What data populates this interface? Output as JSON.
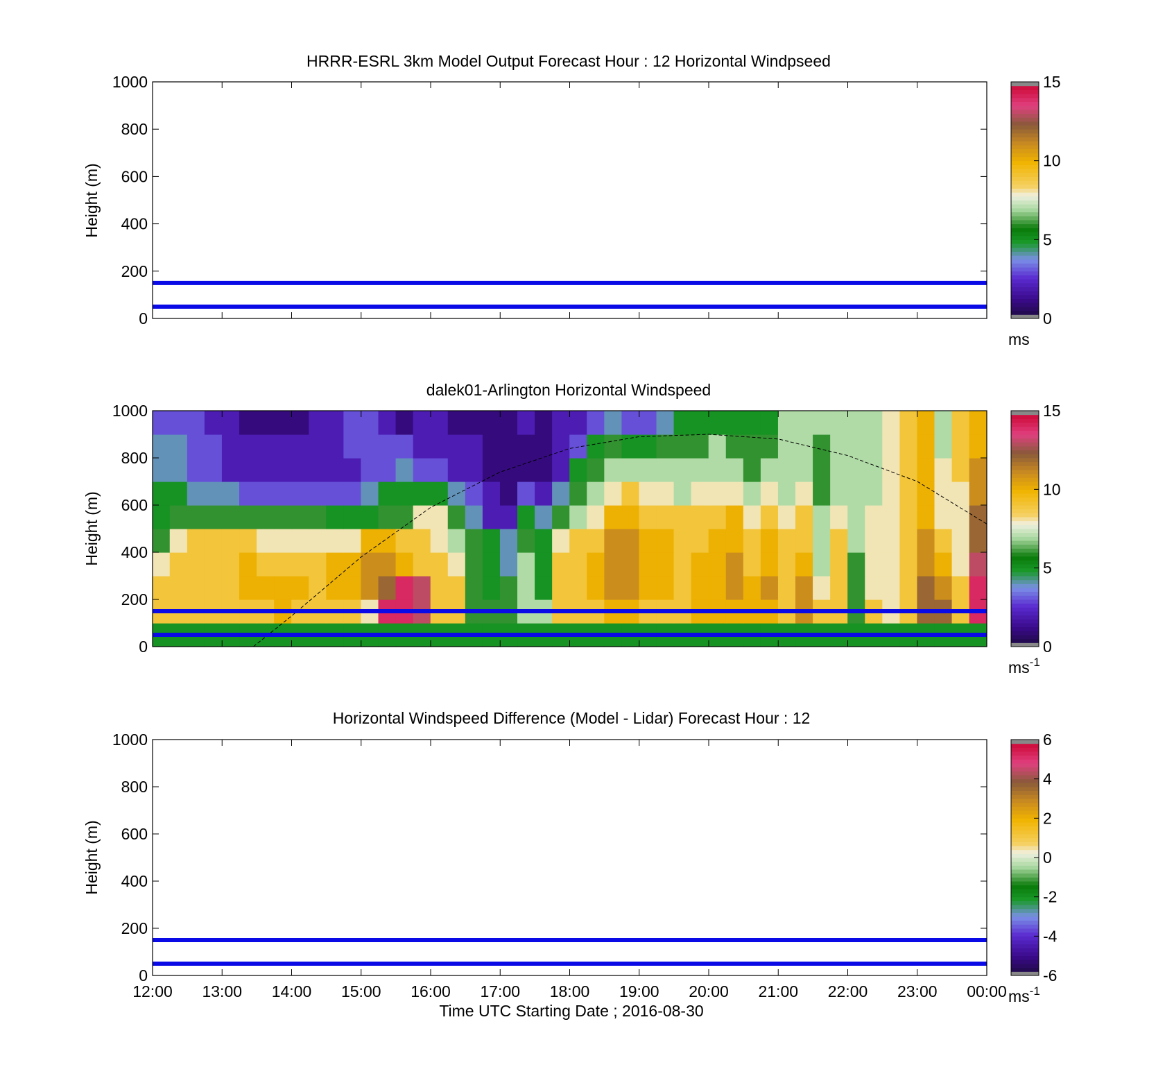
{
  "chart_data": [
    {
      "type": "heatmap",
      "title": "HRRR-ESRL 3km Model Output   Forecast Hour : 12 Horizontal Windpseed",
      "xlabel": "",
      "ylabel": "Height (m)",
      "xlim": [
        "12:00",
        "00:00"
      ],
      "ylim": [
        0,
        1000
      ],
      "yticks": [
        "0",
        "200",
        "400",
        "600",
        "800",
        "1000"
      ],
      "reference_lines_m": [
        50,
        150
      ],
      "reference_line_color": "#0a0ae6",
      "colorbar": {
        "range": [
          0,
          15
        ],
        "ticks": [
          "0",
          "5",
          "10",
          "15"
        ],
        "unit": "ms"
      },
      "values": []
    },
    {
      "type": "heatmap",
      "title": "dalek01-Arlington  Horizontal Windspeed",
      "xlabel": "",
      "ylabel": "Height (m)",
      "xlim": [
        "12:00",
        "00:00"
      ],
      "ylim": [
        0,
        1000
      ],
      "yticks": [
        "0",
        "200",
        "400",
        "600",
        "800",
        "1000"
      ],
      "reference_lines_m": [
        50,
        150
      ],
      "reference_line_color": "#0a0ae6",
      "colorbar": {
        "range": [
          0,
          15
        ],
        "ticks": [
          "0",
          "5",
          "10",
          "15"
        ],
        "unit": "ms",
        "unit_superscript": "-1"
      },
      "boundary_layer_curve": [
        {
          "x": "13:27",
          "y": 0
        },
        {
          "x": "14:00",
          "y": 130
        },
        {
          "x": "15:00",
          "y": 380
        },
        {
          "x": "16:00",
          "y": 590
        },
        {
          "x": "17:00",
          "y": 740
        },
        {
          "x": "18:00",
          "y": 840
        },
        {
          "x": "19:00",
          "y": 890
        },
        {
          "x": "20:00",
          "y": 900
        },
        {
          "x": "21:00",
          "y": 880
        },
        {
          "x": "22:00",
          "y": 810
        },
        {
          "x": "23:00",
          "y": 700
        },
        {
          "x": "00:00",
          "y": 520
        }
      ],
      "columns_time": [
        "12:00",
        "12:15",
        "12:30",
        "12:45",
        "13:00",
        "13:15",
        "13:30",
        "13:45",
        "14:00",
        "14:15",
        "14:30",
        "14:45",
        "15:00",
        "15:15",
        "15:30",
        "15:45",
        "16:00",
        "16:15",
        "16:30",
        "16:45",
        "17:00",
        "17:15",
        "17:30",
        "17:45",
        "18:00",
        "18:15",
        "18:30",
        "18:45",
        "19:00",
        "19:15",
        "19:30",
        "19:45",
        "20:00",
        "20:15",
        "20:30",
        "20:45",
        "21:00",
        "21:15",
        "21:30",
        "21:45",
        "22:00",
        "22:15",
        "22:30",
        "22:45",
        "23:00",
        "23:15",
        "23:30",
        "23:45"
      ],
      "rows_height_m": [
        0,
        100,
        200,
        300,
        400,
        500,
        600,
        700,
        800,
        900
      ],
      "values_ms": [
        [
          5,
          5,
          5,
          5,
          5,
          5,
          5,
          5,
          5,
          5,
          5,
          5,
          5,
          5,
          5,
          5,
          5,
          5,
          5,
          5,
          5,
          5,
          5,
          5,
          5,
          5,
          5,
          5,
          5,
          5,
          5,
          5,
          5,
          5,
          5,
          5,
          5,
          5,
          5,
          5,
          5,
          5,
          5,
          5,
          5,
          5,
          5,
          5
        ],
        [
          9,
          9,
          9,
          9,
          9,
          9,
          9,
          10,
          9,
          9,
          9,
          9,
          8,
          14,
          14,
          13,
          9,
          9,
          6,
          6,
          6,
          7,
          7,
          9,
          9,
          9,
          10,
          10,
          9,
          9,
          9,
          10,
          10,
          10,
          10,
          10,
          9,
          11,
          9,
          9,
          6,
          9,
          8,
          9,
          12,
          12,
          9,
          14
        ],
        [
          9,
          9,
          9,
          9,
          9,
          10,
          10,
          10,
          10,
          9,
          10,
          10,
          11,
          12,
          14,
          13,
          9,
          9,
          6,
          5,
          6,
          7,
          5,
          9,
          9,
          10,
          11,
          11,
          10,
          10,
          9,
          10,
          10,
          11,
          10,
          11,
          9,
          11,
          8,
          9,
          6,
          8,
          8,
          9,
          12,
          11,
          9,
          14
        ],
        [
          8,
          9,
          9,
          9,
          9,
          10,
          9,
          9,
          9,
          9,
          10,
          10,
          11,
          11,
          10,
          9,
          9,
          8,
          6,
          5,
          4,
          7,
          5,
          9,
          9,
          10,
          11,
          11,
          10,
          10,
          9,
          10,
          10,
          11,
          9,
          10,
          9,
          10,
          7,
          9,
          6,
          8,
          8,
          9,
          11,
          10,
          8,
          13
        ],
        [
          6,
          8,
          9,
          9,
          9,
          9,
          8,
          8,
          8,
          8,
          8,
          8,
          10,
          10,
          9,
          9,
          8,
          7,
          6,
          5,
          4,
          6,
          5,
          8,
          9,
          9,
          11,
          11,
          10,
          10,
          9,
          9,
          10,
          10,
          9,
          10,
          9,
          9,
          7,
          9,
          7,
          8,
          8,
          9,
          11,
          9,
          8,
          12
        ],
        [
          5,
          6,
          6,
          6,
          6,
          6,
          6,
          6,
          6,
          6,
          5,
          5,
          5,
          6,
          6,
          8,
          8,
          6,
          4,
          2,
          2,
          5,
          4,
          6,
          7,
          8,
          10,
          10,
          9,
          9,
          9,
          9,
          9,
          10,
          8,
          9,
          8,
          9,
          7,
          8,
          7,
          8,
          8,
          9,
          10,
          8,
          8,
          12
        ],
        [
          5,
          5,
          4,
          4,
          4,
          3,
          3,
          3,
          3,
          3,
          3,
          3,
          4,
          5,
          5,
          5,
          5,
          4,
          3,
          2,
          1,
          3,
          2,
          4,
          6,
          7,
          8,
          9,
          8,
          8,
          7,
          8,
          8,
          8,
          7,
          8,
          7,
          8,
          6,
          7,
          7,
          7,
          8,
          9,
          10,
          8,
          8,
          11
        ],
        [
          4,
          4,
          3,
          3,
          2,
          2,
          2,
          2,
          2,
          2,
          2,
          2,
          3,
          3,
          4,
          3,
          3,
          2,
          2,
          1,
          1,
          1,
          1,
          2,
          5,
          6,
          7,
          7,
          7,
          7,
          7,
          7,
          7,
          7,
          6,
          7,
          7,
          7,
          6,
          7,
          7,
          7,
          8,
          9,
          10,
          8,
          9,
          11
        ],
        [
          4,
          4,
          3,
          3,
          2,
          2,
          2,
          2,
          2,
          2,
          2,
          3,
          3,
          3,
          3,
          2,
          2,
          2,
          2,
          1,
          1,
          1,
          1,
          2,
          3,
          5,
          6,
          5,
          5,
          6,
          6,
          6,
          7,
          6,
          6,
          6,
          7,
          7,
          6,
          7,
          7,
          7,
          8,
          9,
          10,
          7,
          9,
          10
        ],
        [
          3,
          3,
          3,
          2,
          2,
          1,
          1,
          1,
          1,
          2,
          2,
          3,
          3,
          2,
          1,
          2,
          2,
          1,
          1,
          1,
          1,
          2,
          1,
          2,
          2,
          3,
          4,
          3,
          3,
          4,
          5,
          5,
          5,
          5,
          5,
          5,
          7,
          7,
          7,
          7,
          7,
          7,
          8,
          9,
          10,
          7,
          9,
          10
        ]
      ]
    },
    {
      "type": "heatmap",
      "title": "Horizontal Windspeed Difference (Model - Lidar) Forecast Hour : 12",
      "xlabel": "Time UTC  Starting Date ; 2016-08-30",
      "ylabel": "Height (m)",
      "xlim": [
        "12:00",
        "00:00"
      ],
      "ylim": [
        0,
        1000
      ],
      "xticks": [
        "12:00",
        "13:00",
        "14:00",
        "15:00",
        "16:00",
        "17:00",
        "18:00",
        "19:00",
        "20:00",
        "21:00",
        "22:00",
        "23:00",
        "00:00"
      ],
      "yticks": [
        "0",
        "200",
        "400",
        "600",
        "800",
        "1000"
      ],
      "reference_lines_m": [
        50,
        150
      ],
      "reference_line_color": "#0a0ae6",
      "colorbar": {
        "range": [
          -6,
          6
        ],
        "ticks": [
          "-6",
          "-4",
          "-2",
          "0",
          "2",
          "4",
          "6"
        ],
        "unit": "ms",
        "unit_superscript": "-1"
      },
      "values": []
    }
  ]
}
